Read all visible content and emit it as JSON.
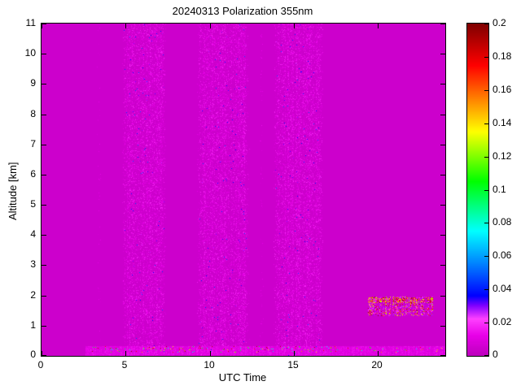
{
  "chart_data": {
    "type": "heatmap",
    "title": "20240313 Polarization 355nm",
    "xlabel": "UTC Time",
    "ylabel": "Altitude [km]",
    "xlim": [
      0,
      24
    ],
    "ylim": [
      0,
      11
    ],
    "xticks": [
      0,
      5,
      10,
      15,
      20
    ],
    "yticks": [
      0,
      1,
      2,
      3,
      4,
      5,
      6,
      7,
      8,
      9,
      10,
      11
    ],
    "grid": false,
    "legend": "none",
    "colorbar": {
      "position": "right",
      "vmin": 0,
      "vmax": 0.2,
      "ticks": [
        "0",
        "0.02",
        "0.04",
        "0.06",
        "0.08",
        "0.1",
        "0.12",
        "0.14",
        "0.16",
        "0.18",
        "0.2"
      ]
    },
    "colormap": [
      {
        "v": 0.0,
        "rgb": [
          190,
          0,
          190
        ]
      },
      {
        "v": 0.012,
        "rgb": [
          232,
          0,
          232
        ]
      },
      {
        "v": 0.022,
        "rgb": [
          255,
          64,
          255
        ]
      },
      {
        "v": 0.03,
        "rgb": [
          128,
          0,
          255
        ]
      },
      {
        "v": 0.036,
        "rgb": [
          0,
          0,
          255
        ]
      },
      {
        "v": 0.055,
        "rgb": [
          0,
          128,
          255
        ]
      },
      {
        "v": 0.075,
        "rgb": [
          0,
          255,
          255
        ]
      },
      {
        "v": 0.105,
        "rgb": [
          0,
          255,
          0
        ]
      },
      {
        "v": 0.135,
        "rgb": [
          255,
          255,
          0
        ]
      },
      {
        "v": 0.155,
        "rgb": [
          255,
          128,
          0
        ]
      },
      {
        "v": 0.175,
        "rgb": [
          255,
          0,
          0
        ]
      },
      {
        "v": 0.2,
        "rgb": [
          128,
          0,
          0
        ]
      }
    ],
    "background_value": 0.004,
    "noise_bands": [
      {
        "x0": 4.8,
        "x1": 7.4,
        "density": 0.5,
        "v0": 0.006,
        "v1": 0.019,
        "p_blue": 0.006,
        "blue_v0": 0.022,
        "blue_v1": 0.05
      },
      {
        "x0": 9.25,
        "x1": 12.4,
        "density": 0.45,
        "v0": 0.006,
        "v1": 0.019,
        "p_blue": 0.005,
        "blue_v0": 0.022,
        "blue_v1": 0.05
      },
      {
        "x0": 13.8,
        "x1": 16.75,
        "density": 0.5,
        "v0": 0.006,
        "v1": 0.019,
        "p_blue": 0.006,
        "blue_v0": 0.022,
        "blue_v1": 0.05
      },
      {
        "x0": 12.95,
        "x1": 13.2,
        "density": 0.18,
        "v0": 0.006,
        "v1": 0.014,
        "p_blue": 0.001,
        "blue_v0": 0.022,
        "blue_v1": 0.04
      },
      {
        "x0": 3.3,
        "x1": 3.55,
        "density": 0.15,
        "v0": 0.006,
        "v1": 0.013,
        "p_blue": 0.001,
        "blue_v0": 0.022,
        "blue_v1": 0.04
      }
    ],
    "bottom_layer": {
      "x0": 2.6,
      "x1": 24,
      "y0": 0,
      "y1": 0.32,
      "v0": 0.007,
      "v1": 0.018,
      "dots": [
        {
          "x0": 3.0,
          "x1": 17.6,
          "y0": 0.1,
          "y1": 0.32,
          "p": 0.05,
          "v0": 0.07,
          "v1": 0.2
        },
        {
          "x0": 18.2,
          "x1": 23.8,
          "y0": 0.1,
          "y1": 0.3,
          "p": 0.015,
          "v0": 0.07,
          "v1": 0.18
        }
      ]
    },
    "cloud": {
      "x0": 19.4,
      "x1": 23.3,
      "y0": 1.32,
      "y1": 1.95,
      "gap_fraction": 0.12,
      "p_dark": 0.2,
      "dark_v0": 0.12,
      "dark_v1": 0.2,
      "p_pink": 0.4,
      "pink_v0": 0.008,
      "pink_v1": 0.03,
      "top_edge": {
        "y0": 1.75,
        "y1": 1.93,
        "p_dark": 0.55
      }
    }
  }
}
